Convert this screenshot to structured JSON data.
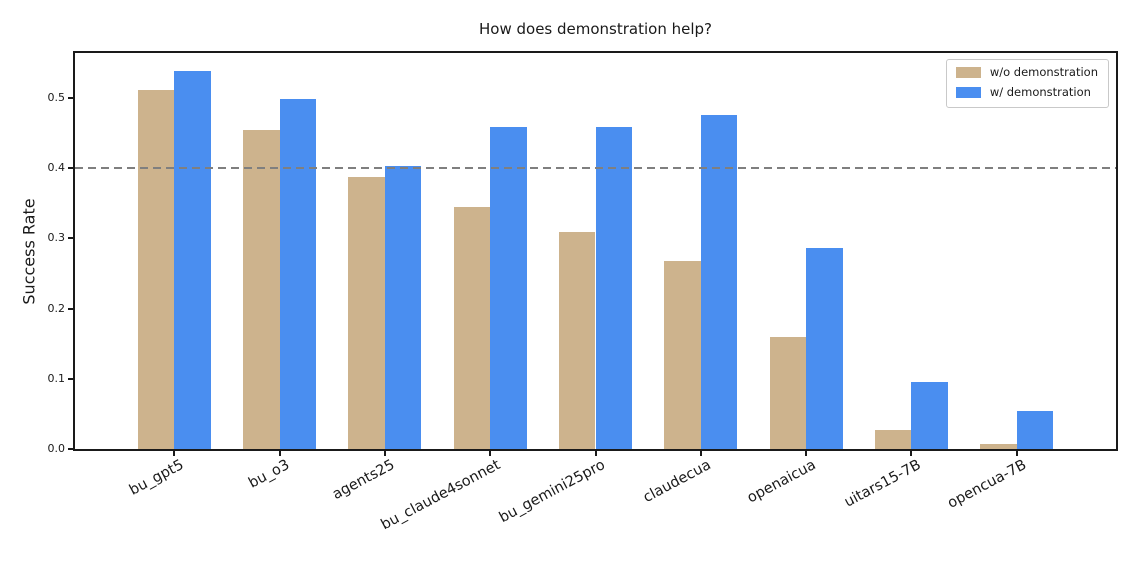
{
  "chart_data": {
    "type": "bar",
    "title": "How does demonstration help?",
    "ylabel": "Success Rate",
    "xlabel": "",
    "categories": [
      "bu_gpt5",
      "bu_o3",
      "agents25",
      "bu_claude4sonnet",
      "bu_gemini25pro",
      "claudecua",
      "openaicua",
      "uitars15-7B",
      "opencua-7B"
    ],
    "series": [
      {
        "name": "w/o demonstration",
        "color": "#CDB38D",
        "values": [
          0.512,
          0.455,
          0.388,
          0.345,
          0.309,
          0.268,
          0.159,
          0.027,
          0.007
        ]
      },
      {
        "name": "w/ demonstration",
        "color": "#4A8EF0",
        "values": [
          0.538,
          0.498,
          0.403,
          0.459,
          0.459,
          0.476,
          0.287,
          0.096,
          0.054
        ]
      }
    ],
    "ytick_labels": [
      "0.0",
      "0.1",
      "0.2",
      "0.3",
      "0.4",
      "0.5"
    ],
    "ytick_values": [
      0.0,
      0.1,
      0.2,
      0.3,
      0.4,
      0.5
    ],
    "ylim": [
      0,
      0.5641
    ],
    "reference_line": {
      "value": 0.4,
      "color": "#7f7f7f",
      "style": "dashed"
    },
    "legend": {
      "position": "upper right"
    },
    "grid": false,
    "axis_color": "#1a1a1a",
    "background_color": "#ffffff"
  }
}
